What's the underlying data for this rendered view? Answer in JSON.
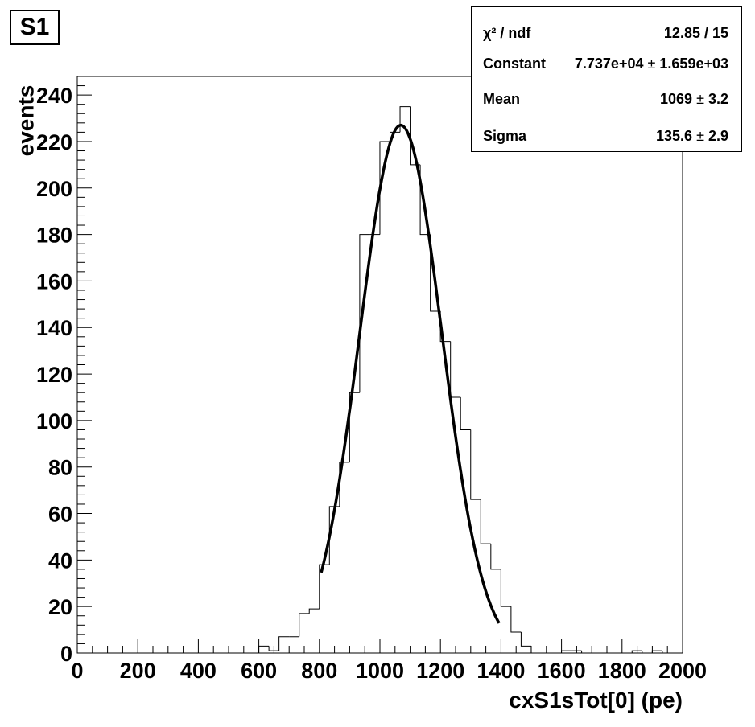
{
  "title": "S1",
  "stats": {
    "rows": [
      {
        "label": "χ² / ndf",
        "value": "12.85 / 15"
      },
      {
        "label": "Constant",
        "value": "7.737e+04",
        "error": "1.659e+03"
      },
      {
        "label": "Mean",
        "value": "1069",
        "error": "3.2"
      },
      {
        "label": "Sigma",
        "value": "135.6",
        "error": "2.9"
      }
    ],
    "pm_symbol": "±"
  },
  "chart_data": {
    "type": "histogram",
    "title": "S1",
    "xlabel": "cxS1sTot[0] (pe)",
    "ylabel": "events",
    "xlim": [
      0,
      2000
    ],
    "ylim": [
      0,
      248
    ],
    "x_ticks": [
      0,
      200,
      400,
      600,
      800,
      1000,
      1200,
      1400,
      1600,
      1800,
      2000
    ],
    "y_ticks": [
      0,
      20,
      40,
      60,
      80,
      100,
      120,
      140,
      160,
      180,
      200,
      220,
      240
    ],
    "bin_width": 33.33,
    "bin_edges_start": 0,
    "counts": [
      0,
      0,
      0,
      0,
      0,
      0,
      0,
      0,
      0,
      0,
      0,
      0,
      0,
      0,
      0,
      0,
      0,
      0,
      3,
      1,
      7,
      7,
      17,
      19,
      38,
      63,
      82,
      112,
      180,
      180,
      220,
      224,
      235,
      210,
      180,
      147,
      134,
      110,
      96,
      66,
      47,
      36,
      20,
      9,
      3,
      0,
      0,
      0,
      1,
      1,
      0,
      0,
      0,
      0,
      0,
      1,
      0,
      1,
      0,
      0
    ],
    "fit": {
      "type": "gaussian",
      "constant": 227,
      "mean": 1069,
      "sigma": 135.6,
      "x_range": [
        806,
        1394
      ]
    }
  }
}
